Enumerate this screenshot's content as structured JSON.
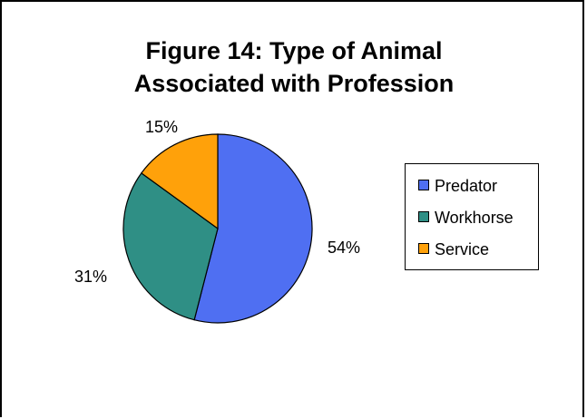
{
  "chart_data": {
    "type": "pie",
    "title": [
      "Figure 14: Type of Animal",
      "Associated with Profession"
    ],
    "slices": [
      {
        "name": "Predator",
        "value": 54,
        "label": "54%",
        "color": "#4f6ff2"
      },
      {
        "name": "Workhorse",
        "value": 31,
        "label": "31%",
        "color": "#2f8f85"
      },
      {
        "name": "Service",
        "value": 15,
        "label": "15%",
        "color": "#ffa10a"
      }
    ],
    "legend_position": "right"
  }
}
